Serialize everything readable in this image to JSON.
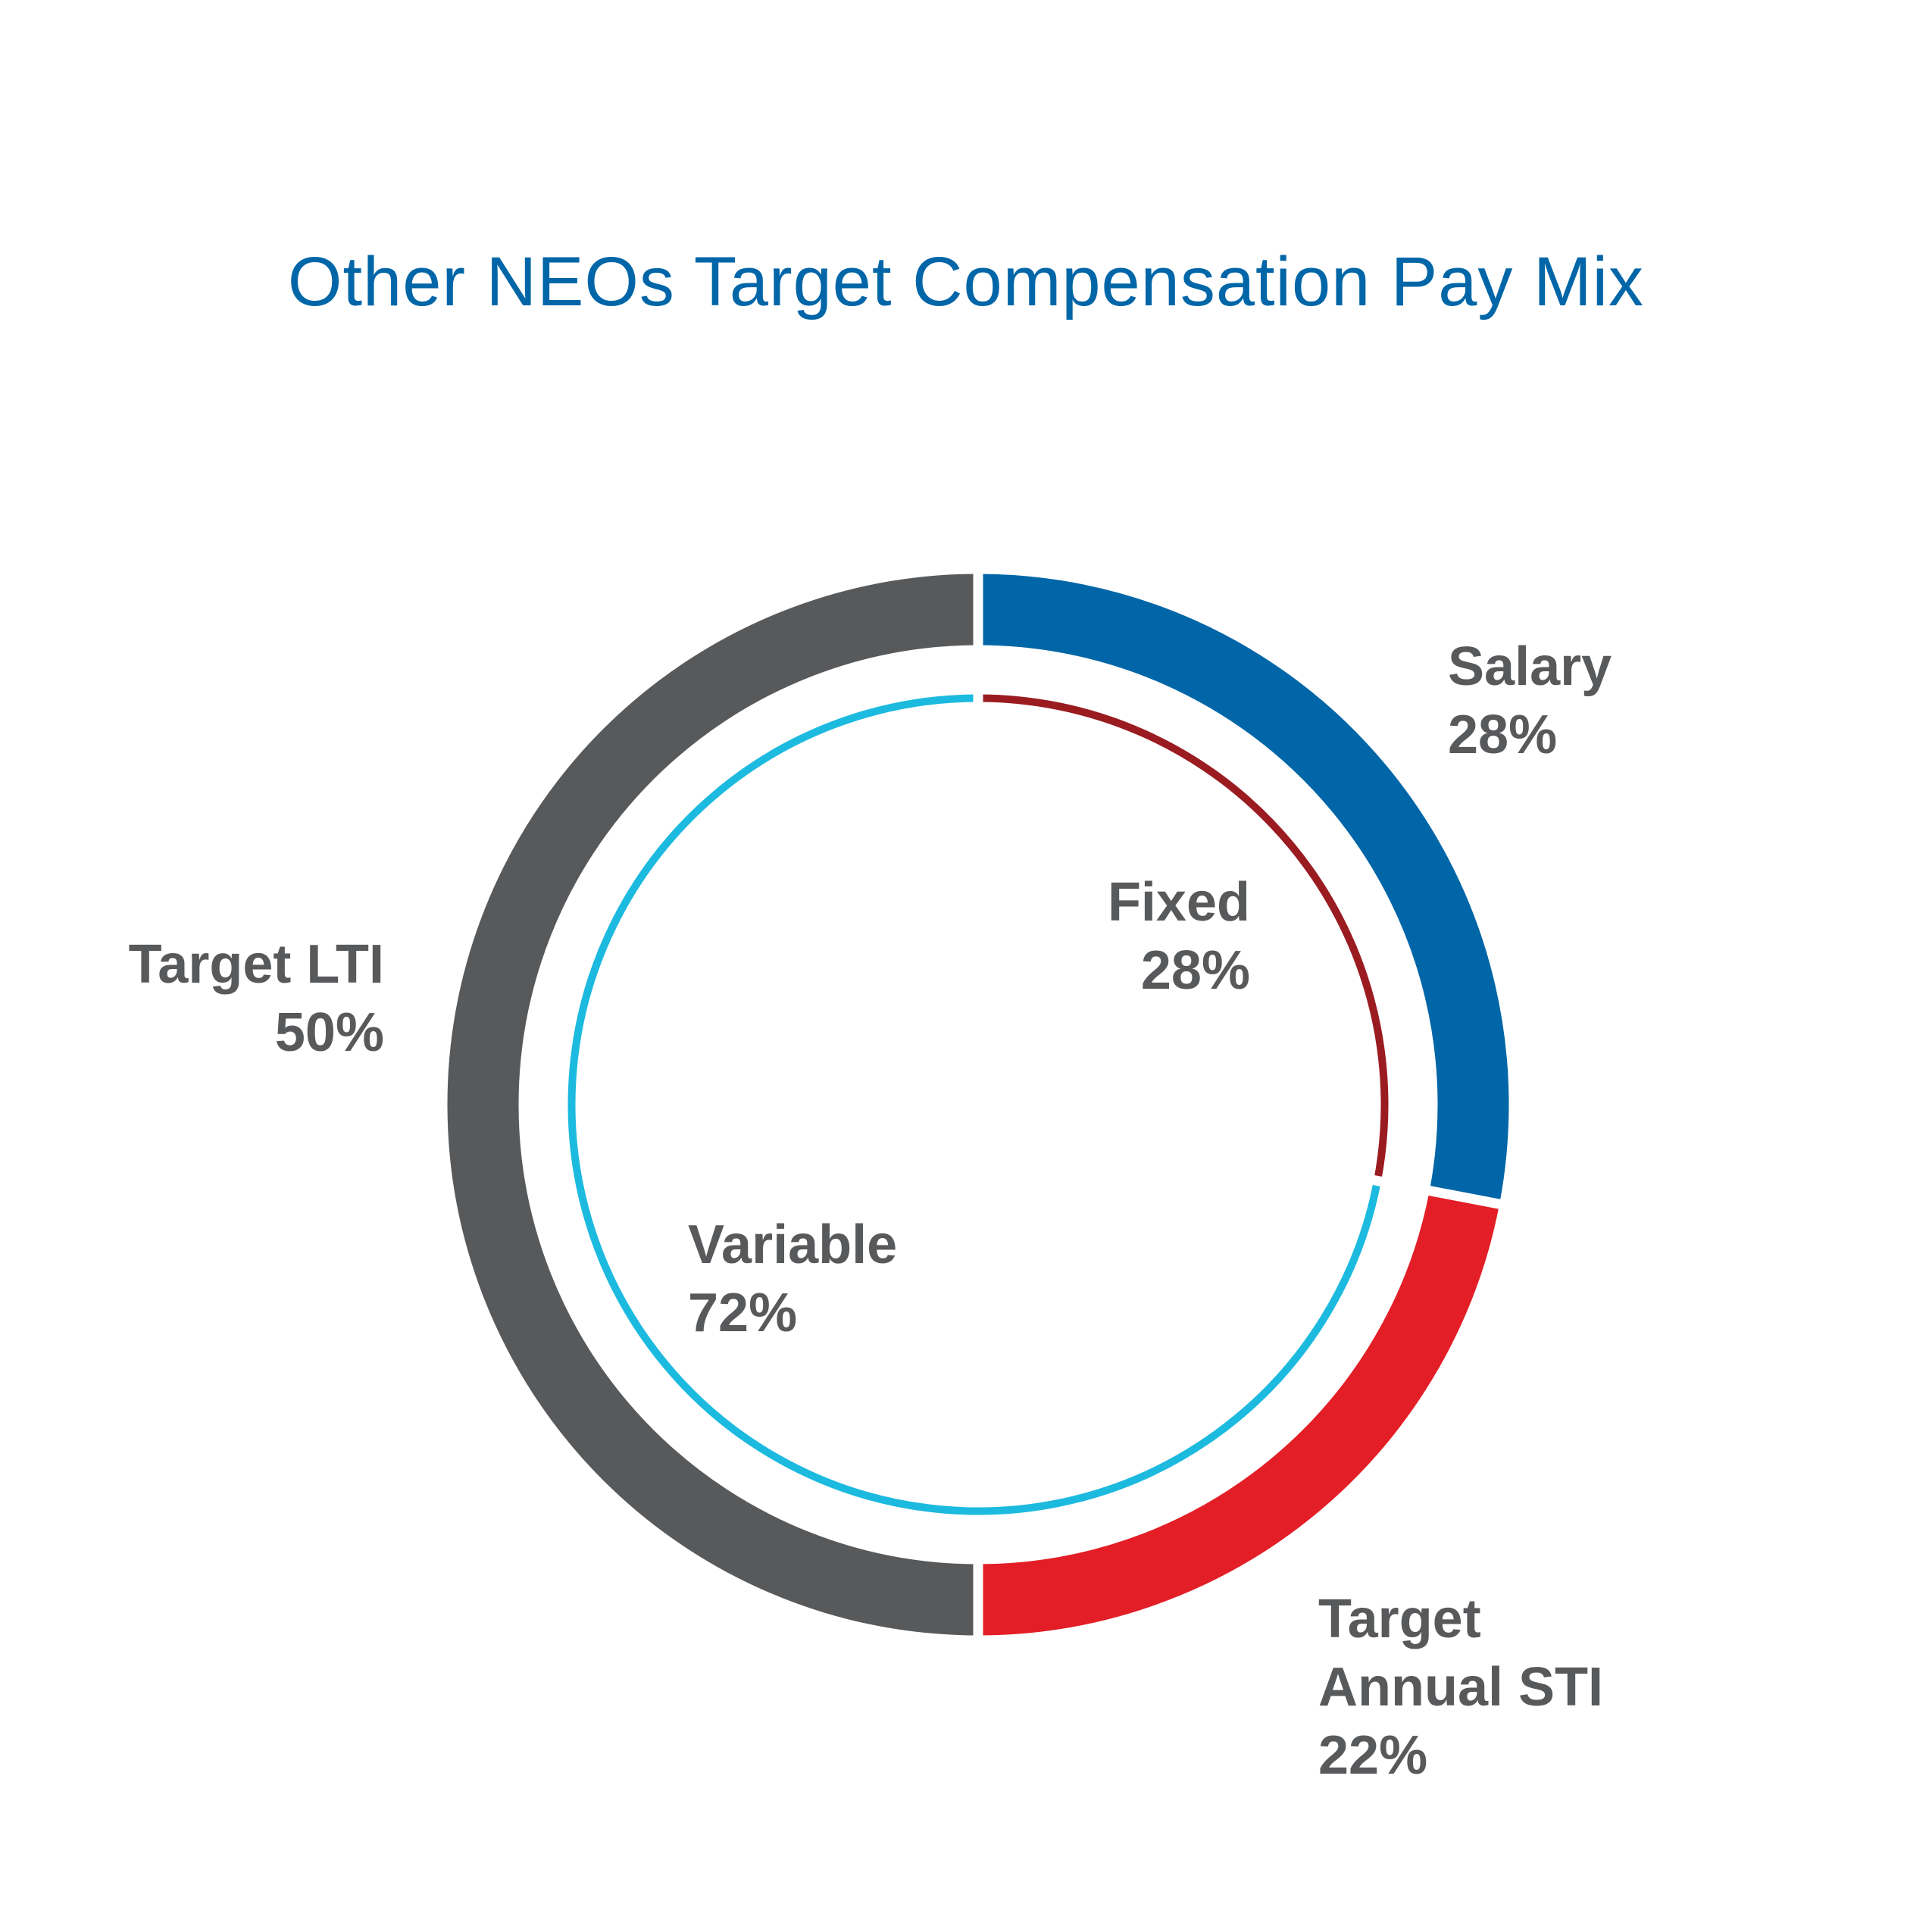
{
  "chart_data": [
    {
      "type": "donut",
      "title": "Other NEOs Target Compensation Pay Mix",
      "categories": [
        "Salary",
        "Target Annual STI",
        "Target LTI"
      ],
      "values": [
        28,
        22,
        50
      ],
      "value_labels": [
        "28%",
        "22%",
        "50%"
      ],
      "colors": [
        "#0066a8",
        "#e31e26",
        "#58595b"
      ]
    },
    {
      "type": "donut",
      "categories": [
        "Fixed",
        "Variable"
      ],
      "values": [
        28,
        72
      ],
      "value_labels": [
        "28%",
        "72%"
      ],
      "colors": [
        "#9a1c20",
        "#1cbadf"
      ]
    }
  ]
}
